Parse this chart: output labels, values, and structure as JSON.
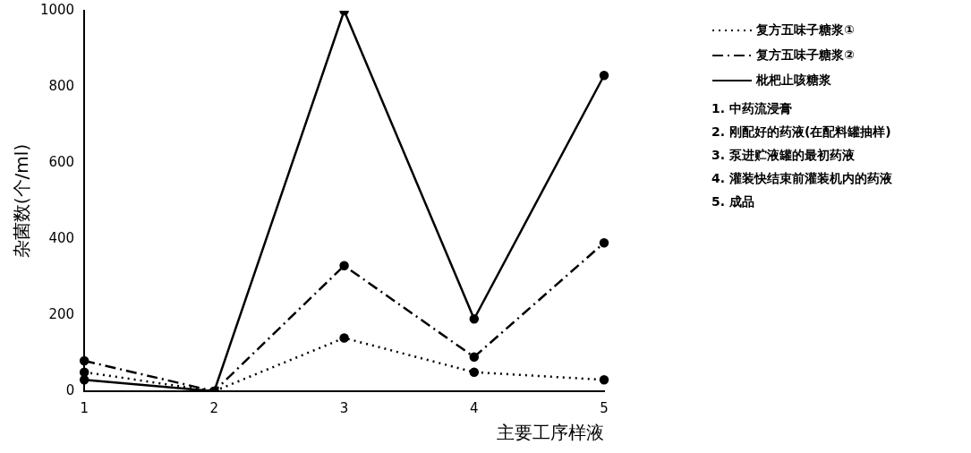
{
  "chart_data": {
    "type": "line",
    "ylabel": "杂菌数(个/ml)",
    "xlabel": "主要工序样液",
    "categories": [
      "1",
      "2",
      "3",
      "4",
      "5"
    ],
    "series": [
      {
        "name": "复方五味子糖浆①",
        "color": "#000000",
        "line_style": "dotted",
        "values": [
          50,
          0,
          140,
          50,
          30
        ]
      },
      {
        "name": "复方五味子糖浆②",
        "color": "#000000",
        "line_style": "dashdot",
        "values": [
          80,
          0,
          330,
          90,
          390
        ]
      },
      {
        "name": "枇杷止咳糖浆",
        "color": "#000000",
        "line_style": "solid",
        "values": [
          30,
          0,
          1000,
          190,
          830
        ]
      }
    ],
    "ylim": [
      0,
      1000
    ],
    "yticks": [
      0,
      200,
      400,
      600,
      800,
      1000
    ],
    "grid": false,
    "legend": "top right",
    "marker": "circle",
    "annotations": [
      "1. 中药流浸膏",
      "2. 刚配好的药液(在配料罐抽样)",
      "3. 泵进贮液罐的最初药液",
      "4. 灌装快结束前灌装机内的药液",
      "5. 成品"
    ]
  }
}
